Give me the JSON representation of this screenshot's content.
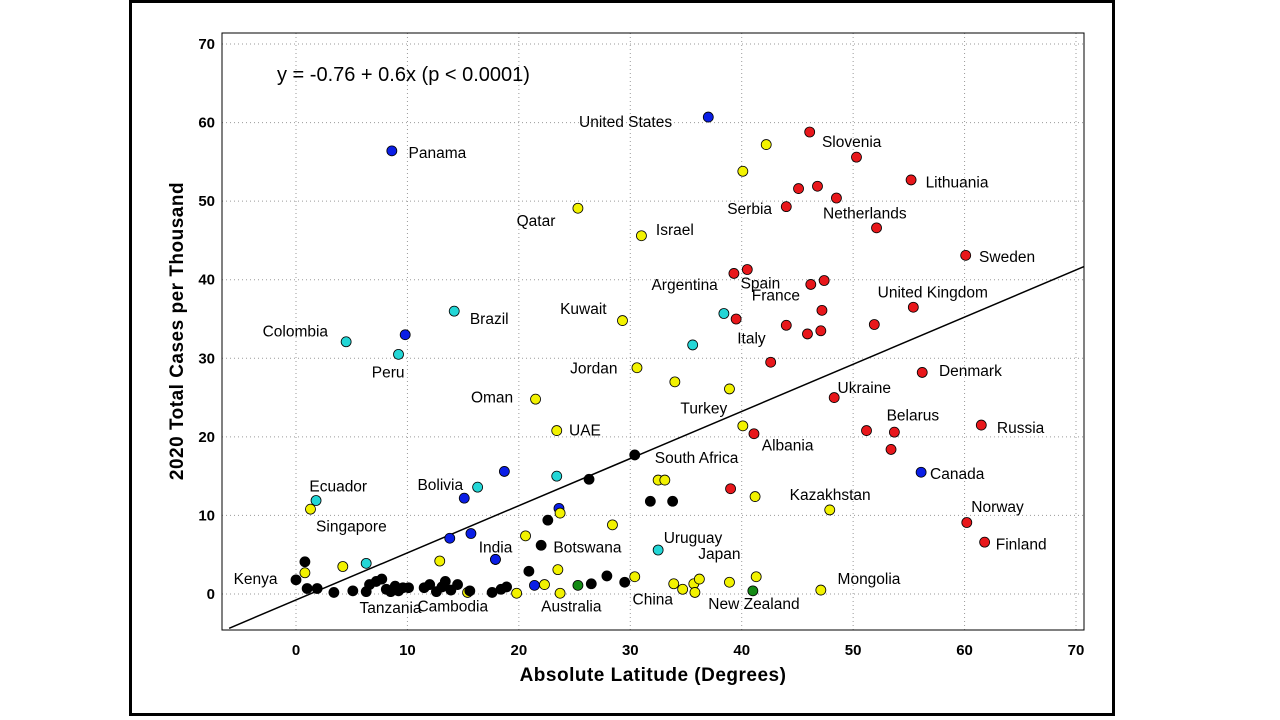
{
  "chart_data": {
    "type": "scatter",
    "title": "",
    "equation": "y = -0.76 + 0.6x (p < 0.0001)",
    "xlabel": "Absolute Latitude (Degrees)",
    "ylabel": "2020 Total Cases per Thousand",
    "xlim": [
      -6,
      71
    ],
    "ylim": [
      -5,
      71
    ],
    "xticks": [
      0,
      10,
      20,
      30,
      40,
      50,
      60,
      70
    ],
    "yticks": [
      0,
      10,
      20,
      30,
      40,
      50,
      60,
      70
    ],
    "grid": "dotted",
    "colors": {
      "red": "#e8171b",
      "blue": "#0a1ee6",
      "cyan": "#23d6d6",
      "yellow": "#f2f200",
      "black": "#000000",
      "green": "#148a14"
    },
    "regression": {
      "intercept": -0.76,
      "slope": 0.6,
      "x_range": [
        -6,
        71
      ]
    },
    "points": [
      {
        "x": 37.0,
        "y": 60.7,
        "c": "blue",
        "label": "United States",
        "ldx": -11.6,
        "ldy": -0.6
      },
      {
        "x": 8.6,
        "y": 56.4,
        "c": "blue",
        "label": "Panama",
        "ldx": 1.5,
        "ldy": -0.3
      },
      {
        "x": 9.8,
        "y": 33.0,
        "c": "blue",
        "label": "",
        "ldx": 0,
        "ldy": 0
      },
      {
        "x": 18.7,
        "y": 15.6,
        "c": "blue",
        "label": "",
        "ldx": 0,
        "ldy": 0
      },
      {
        "x": 15.1,
        "y": 12.2,
        "c": "blue",
        "label": "",
        "ldx": 0,
        "ldy": 0
      },
      {
        "x": 23.6,
        "y": 10.9,
        "c": "blue",
        "label": "",
        "ldx": 0,
        "ldy": 0
      },
      {
        "x": 15.7,
        "y": 7.7,
        "c": "blue",
        "label": "",
        "ldx": 0,
        "ldy": 0
      },
      {
        "x": 13.8,
        "y": 7.1,
        "c": "blue",
        "label": "",
        "ldx": 0,
        "ldy": 0
      },
      {
        "x": 17.9,
        "y": 4.4,
        "c": "blue",
        "label": "",
        "ldx": 0,
        "ldy": 0
      },
      {
        "x": 21.4,
        "y": 1.1,
        "c": "blue",
        "label": "",
        "ldx": 0,
        "ldy": 0
      },
      {
        "x": 56.1,
        "y": 15.5,
        "c": "blue",
        "label": "Canada",
        "ldx": 0.8,
        "ldy": -0.2
      },
      {
        "x": 46.1,
        "y": 58.8,
        "c": "red",
        "label": "Slovenia",
        "ldx": 1.1,
        "ldy": -1.3
      },
      {
        "x": 50.3,
        "y": 55.6,
        "c": "red",
        "label": "",
        "ldx": 0,
        "ldy": 0
      },
      {
        "x": 55.2,
        "y": 52.7,
        "c": "red",
        "label": "Lithuania",
        "ldx": 1.3,
        "ldy": -0.3
      },
      {
        "x": 46.8,
        "y": 51.9,
        "c": "red",
        "label": "",
        "ldx": 0,
        "ldy": 0
      },
      {
        "x": 45.1,
        "y": 51.6,
        "c": "red",
        "label": "",
        "ldx": 0,
        "ldy": 0
      },
      {
        "x": 48.5,
        "y": 50.4,
        "c": "red",
        "label": "",
        "ldx": 0,
        "ldy": 0
      },
      {
        "x": 44.0,
        "y": 49.3,
        "c": "red",
        "label": "Serbia",
        "ldx": -5.3,
        "ldy": -0.3
      },
      {
        "x": 52.1,
        "y": 46.6,
        "c": "red",
        "label": "Netherlands",
        "ldx": -4.8,
        "ldy": 1.8
      },
      {
        "x": 60.1,
        "y": 43.1,
        "c": "red",
        "label": "Sweden",
        "ldx": 1.2,
        "ldy": -0.2
      },
      {
        "x": 40.5,
        "y": 41.3,
        "c": "red",
        "label": "Spain",
        "ldx": -0.6,
        "ldy": -1.8
      },
      {
        "x": 39.3,
        "y": 40.8,
        "c": "red",
        "label": "",
        "ldx": 0,
        "ldy": 0
      },
      {
        "x": 47.4,
        "y": 39.9,
        "c": "red",
        "label": "",
        "ldx": 0,
        "ldy": 0
      },
      {
        "x": 46.2,
        "y": 39.4,
        "c": "red",
        "label": "",
        "ldx": 0,
        "ldy": 0
      },
      {
        "x": 47.2,
        "y": 36.1,
        "c": "red",
        "label": "France",
        "ldx": -6.3,
        "ldy": 1.9
      },
      {
        "x": 55.4,
        "y": 36.5,
        "c": "red",
        "label": "United Kingdom",
        "ldx": -3.2,
        "ldy": 1.9
      },
      {
        "x": 39.5,
        "y": 35.0,
        "c": "red",
        "label": "",
        "ldx": 0,
        "ldy": 0
      },
      {
        "x": 44.0,
        "y": 34.2,
        "c": "red",
        "label": "",
        "ldx": 0,
        "ldy": 0
      },
      {
        "x": 51.9,
        "y": 34.3,
        "c": "red",
        "label": "",
        "ldx": 0,
        "ldy": 0
      },
      {
        "x": 47.1,
        "y": 33.5,
        "c": "red",
        "label": "",
        "ldx": 0,
        "ldy": 0
      },
      {
        "x": 45.9,
        "y": 33.1,
        "c": "red",
        "label": "",
        "ldx": 0,
        "ldy": 0
      },
      {
        "x": 42.6,
        "y": 29.5,
        "c": "red",
        "label": "Italy",
        "ldx": -3.0,
        "ldy": 3.0
      },
      {
        "x": 56.2,
        "y": 28.2,
        "c": "red",
        "label": "Denmark",
        "ldx": 1.5,
        "ldy": 0.2
      },
      {
        "x": 48.3,
        "y": 25.0,
        "c": "red",
        "label": "Ukraine",
        "ldx": 0.3,
        "ldy": 1.2
      },
      {
        "x": 53.7,
        "y": 20.6,
        "c": "red",
        "label": "Belarus",
        "ldx": -0.7,
        "ldy": 2.1
      },
      {
        "x": 51.2,
        "y": 20.8,
        "c": "red",
        "label": "",
        "ldx": 0,
        "ldy": 0
      },
      {
        "x": 61.5,
        "y": 21.5,
        "c": "red",
        "label": "Russia",
        "ldx": 1.4,
        "ldy": -0.4
      },
      {
        "x": 41.1,
        "y": 20.4,
        "c": "red",
        "label": "Albania",
        "ldx": 0.7,
        "ldy": -1.5
      },
      {
        "x": 53.4,
        "y": 18.4,
        "c": "red",
        "label": "",
        "ldx": 0,
        "ldy": 0
      },
      {
        "x": 39.0,
        "y": 13.4,
        "c": "red",
        "label": "",
        "ldx": 0,
        "ldy": 0
      },
      {
        "x": 60.2,
        "y": 9.1,
        "c": "red",
        "label": "Norway",
        "ldx": 0.4,
        "ldy": 2.0
      },
      {
        "x": 61.8,
        "y": 6.6,
        "c": "red",
        "label": "Finland",
        "ldx": 1.0,
        "ldy": -0.3
      },
      {
        "x": 42.2,
        "y": 57.2,
        "c": "yellow",
        "label": "",
        "ldx": 0,
        "ldy": 0
      },
      {
        "x": 40.1,
        "y": 53.8,
        "c": "yellow",
        "label": "",
        "ldx": 0,
        "ldy": 0
      },
      {
        "x": 25.3,
        "y": 49.1,
        "c": "yellow",
        "label": "Qatar",
        "ldx": -5.5,
        "ldy": -1.6
      },
      {
        "x": 31.0,
        "y": 45.6,
        "c": "yellow",
        "label": "Israel",
        "ldx": 1.3,
        "ldy": 0.7
      },
      {
        "x": 29.3,
        "y": 34.8,
        "c": "yellow",
        "label": "Kuwait",
        "ldx": -5.6,
        "ldy": 1.5
      },
      {
        "x": 30.6,
        "y": 28.8,
        "c": "yellow",
        "label": "Jordan",
        "ldx": -6.0,
        "ldy": -0.1
      },
      {
        "x": 34.0,
        "y": 27.0,
        "c": "yellow",
        "label": "",
        "ldx": 0,
        "ldy": 0
      },
      {
        "x": 38.9,
        "y": 26.1,
        "c": "yellow",
        "label": "Turkey",
        "ldx": -4.4,
        "ldy": -2.5
      },
      {
        "x": 21.5,
        "y": 24.8,
        "c": "yellow",
        "label": "Oman",
        "ldx": -5.8,
        "ldy": 0.2
      },
      {
        "x": 23.4,
        "y": 20.8,
        "c": "yellow",
        "label": "UAE",
        "ldx": 1.1,
        "ldy": 0.0
      },
      {
        "x": 40.1,
        "y": 21.4,
        "c": "yellow",
        "label": "",
        "ldx": 0,
        "ldy": 0
      },
      {
        "x": 32.5,
        "y": 14.5,
        "c": "yellow",
        "label": "South Africa",
        "ldx": -0.3,
        "ldy": 2.8
      },
      {
        "x": 33.1,
        "y": 14.5,
        "c": "yellow",
        "label": "",
        "ldx": 0,
        "ldy": 0
      },
      {
        "x": 41.2,
        "y": 12.4,
        "c": "yellow",
        "label": "",
        "ldx": 0,
        "ldy": 0
      },
      {
        "x": 47.9,
        "y": 10.7,
        "c": "yellow",
        "label": "Kazakhstan",
        "ldx": -3.6,
        "ldy": 1.9
      },
      {
        "x": 1.3,
        "y": 10.8,
        "c": "yellow",
        "label": "Singapore",
        "ldx": 0.5,
        "ldy": -2.2
      },
      {
        "x": 23.7,
        "y": 10.3,
        "c": "yellow",
        "label": "",
        "ldx": 0,
        "ldy": 0
      },
      {
        "x": 28.4,
        "y": 8.8,
        "c": "yellow",
        "label": "",
        "ldx": 0,
        "ldy": 0
      },
      {
        "x": 20.6,
        "y": 7.4,
        "c": "yellow",
        "label": "",
        "ldx": 0,
        "ldy": 0
      },
      {
        "x": 12.9,
        "y": 4.2,
        "c": "yellow",
        "label": "",
        "ldx": 0,
        "ldy": 0
      },
      {
        "x": 4.2,
        "y": 3.5,
        "c": "yellow",
        "label": "",
        "ldx": 0,
        "ldy": 0
      },
      {
        "x": 0.8,
        "y": 2.7,
        "c": "yellow",
        "label": "",
        "ldx": 0,
        "ldy": 0
      },
      {
        "x": 23.5,
        "y": 3.1,
        "c": "yellow",
        "label": "",
        "ldx": 0,
        "ldy": 0
      },
      {
        "x": 30.4,
        "y": 2.2,
        "c": "yellow",
        "label": "",
        "ldx": 0,
        "ldy": 0
      },
      {
        "x": 22.3,
        "y": 1.2,
        "c": "yellow",
        "label": "",
        "ldx": 0,
        "ldy": 0
      },
      {
        "x": 33.9,
        "y": 1.3,
        "c": "yellow",
        "label": "",
        "ldx": 0,
        "ldy": 0
      },
      {
        "x": 35.7,
        "y": 1.3,
        "c": "yellow",
        "label": "",
        "ldx": 0,
        "ldy": 0
      },
      {
        "x": 36.2,
        "y": 1.9,
        "c": "yellow",
        "label": "Japan",
        "ldx": -0.1,
        "ldy": 3.2
      },
      {
        "x": 38.9,
        "y": 1.5,
        "c": "yellow",
        "label": "",
        "ldx": 0,
        "ldy": 0
      },
      {
        "x": 41.3,
        "y": 2.2,
        "c": "yellow",
        "label": "",
        "ldx": 0,
        "ldy": 0
      },
      {
        "x": 34.7,
        "y": 0.6,
        "c": "yellow",
        "label": "China",
        "ldx": -4.5,
        "ldy": -1.3
      },
      {
        "x": 35.8,
        "y": 0.2,
        "c": "yellow",
        "label": "",
        "ldx": 0,
        "ldy": 0
      },
      {
        "x": 23.7,
        "y": 0.1,
        "c": "yellow",
        "label": "Australia",
        "ldx": -1.7,
        "ldy": -1.7
      },
      {
        "x": 19.8,
        "y": 0.1,
        "c": "yellow",
        "label": "",
        "ldx": 0,
        "ldy": 0
      },
      {
        "x": 15.4,
        "y": 0.2,
        "c": "yellow",
        "label": "",
        "ldx": 0,
        "ldy": 0
      },
      {
        "x": 47.1,
        "y": 0.5,
        "c": "yellow",
        "label": "Mongolia",
        "ldx": 1.5,
        "ldy": 1.4
      },
      {
        "x": 38.4,
        "y": 35.7,
        "c": "cyan",
        "label": "Argentina",
        "ldx": -6.5,
        "ldy": 3.6
      },
      {
        "x": 35.6,
        "y": 31.7,
        "c": "cyan",
        "label": "",
        "ldx": 0,
        "ldy": 0
      },
      {
        "x": 14.2,
        "y": 36.0,
        "c": "cyan",
        "label": "Brazil",
        "ldx": 1.4,
        "ldy": -1.0
      },
      {
        "x": 4.5,
        "y": 32.1,
        "c": "cyan",
        "label": "Colombia",
        "ldx": -7.5,
        "ldy": 1.3
      },
      {
        "x": 9.2,
        "y": 30.5,
        "c": "cyan",
        "label": "Peru",
        "ldx": -2.4,
        "ldy": -2.3
      },
      {
        "x": 23.4,
        "y": 15.0,
        "c": "cyan",
        "label": "",
        "ldx": 0,
        "ldy": 0
      },
      {
        "x": 16.3,
        "y": 13.6,
        "c": "cyan",
        "label": "Bolivia",
        "ldx": -5.4,
        "ldy": 0.3
      },
      {
        "x": 1.8,
        "y": 11.9,
        "c": "cyan",
        "label": "Ecuador",
        "ldx": -0.6,
        "ldy": 1.8
      },
      {
        "x": 6.3,
        "y": 3.9,
        "c": "cyan",
        "label": "",
        "ldx": 0,
        "ldy": 0
      },
      {
        "x": 32.5,
        "y": 5.6,
        "c": "cyan",
        "label": "Uruguay",
        "ldx": 0.5,
        "ldy": 1.5
      },
      {
        "x": 30.4,
        "y": 17.7,
        "c": "black",
        "label": "",
        "ldx": 0,
        "ldy": 0
      },
      {
        "x": 26.3,
        "y": 14.6,
        "c": "black",
        "label": "",
        "ldx": 0,
        "ldy": 0
      },
      {
        "x": 31.8,
        "y": 11.8,
        "c": "black",
        "label": "",
        "ldx": 0,
        "ldy": 0
      },
      {
        "x": 33.8,
        "y": 11.8,
        "c": "black",
        "label": "",
        "ldx": 0,
        "ldy": 0
      },
      {
        "x": 22.6,
        "y": 9.4,
        "c": "black",
        "label": "",
        "ldx": 0,
        "ldy": 0
      },
      {
        "x": 22.0,
        "y": 6.2,
        "c": "black",
        "label": "Botswana",
        "ldx": 1.1,
        "ldy": -0.3
      },
      {
        "x": 20.9,
        "y": 2.9,
        "c": "black",
        "label": "",
        "ldx": 0,
        "ldy": 0
      },
      {
        "x": 27.9,
        "y": 2.3,
        "c": "black",
        "label": "",
        "ldx": 0,
        "ldy": 0
      },
      {
        "x": 26.5,
        "y": 1.3,
        "c": "black",
        "label": "",
        "ldx": 0,
        "ldy": 0
      },
      {
        "x": 29.5,
        "y": 1.5,
        "c": "black",
        "label": "",
        "ldx": 0,
        "ldy": 0
      },
      {
        "x": 0.8,
        "y": 4.1,
        "c": "black",
        "label": "",
        "ldx": 0,
        "ldy": 0
      },
      {
        "x": 0.0,
        "y": 1.8,
        "c": "black",
        "label": "Kenya",
        "ldx": -5.6,
        "ldy": 0.1
      },
      {
        "x": 1.0,
        "y": 0.7,
        "c": "black",
        "label": "",
        "ldx": 0,
        "ldy": 0
      },
      {
        "x": 1.9,
        "y": 0.7,
        "c": "black",
        "label": "",
        "ldx": 0,
        "ldy": 0
      },
      {
        "x": 3.4,
        "y": 0.2,
        "c": "black",
        "label": "",
        "ldx": 0,
        "ldy": 0
      },
      {
        "x": 5.1,
        "y": 0.4,
        "c": "black",
        "label": "",
        "ldx": 0,
        "ldy": 0
      },
      {
        "x": 6.3,
        "y": 0.3,
        "c": "black",
        "label": "Tanzania",
        "ldx": -0.6,
        "ldy": -2.1
      },
      {
        "x": 6.6,
        "y": 1.2,
        "c": "black",
        "label": "",
        "ldx": 0,
        "ldy": 0
      },
      {
        "x": 7.2,
        "y": 1.6,
        "c": "black",
        "label": "",
        "ldx": 0,
        "ldy": 0
      },
      {
        "x": 7.7,
        "y": 1.9,
        "c": "black",
        "label": "",
        "ldx": 0,
        "ldy": 0
      },
      {
        "x": 8.1,
        "y": 0.6,
        "c": "black",
        "label": "",
        "ldx": 0,
        "ldy": 0
      },
      {
        "x": 8.5,
        "y": 0.3,
        "c": "black",
        "label": "",
        "ldx": 0,
        "ldy": 0
      },
      {
        "x": 8.9,
        "y": 1.0,
        "c": "black",
        "label": "",
        "ldx": 0,
        "ldy": 0
      },
      {
        "x": 9.2,
        "y": 0.4,
        "c": "black",
        "label": "",
        "ldx": 0,
        "ldy": 0
      },
      {
        "x": 9.6,
        "y": 0.8,
        "c": "black",
        "label": "",
        "ldx": 0,
        "ldy": 0
      },
      {
        "x": 10.1,
        "y": 0.8,
        "c": "black",
        "label": "",
        "ldx": 0,
        "ldy": 0
      },
      {
        "x": 11.5,
        "y": 0.8,
        "c": "black",
        "label": "",
        "ldx": 0,
        "ldy": 0
      },
      {
        "x": 12.0,
        "y": 1.2,
        "c": "black",
        "label": "",
        "ldx": 0,
        "ldy": 0
      },
      {
        "x": 12.6,
        "y": 0.3,
        "c": "black",
        "label": "Cambodia",
        "ldx": -1.7,
        "ldy": -1.9
      },
      {
        "x": 13.1,
        "y": 0.9,
        "c": "black",
        "label": "",
        "ldx": 0,
        "ldy": 0
      },
      {
        "x": 13.4,
        "y": 1.6,
        "c": "black",
        "label": "",
        "ldx": 0,
        "ldy": 0
      },
      {
        "x": 13.9,
        "y": 0.5,
        "c": "black",
        "label": "",
        "ldx": 0,
        "ldy": 0
      },
      {
        "x": 14.5,
        "y": 1.2,
        "c": "black",
        "label": "",
        "ldx": 0,
        "ldy": 0
      },
      {
        "x": 15.6,
        "y": 0.4,
        "c": "black",
        "label": "",
        "ldx": 0,
        "ldy": 0
      },
      {
        "x": 17.6,
        "y": 0.2,
        "c": "black",
        "label": "",
        "ldx": 0,
        "ldy": 0
      },
      {
        "x": 18.4,
        "y": 0.6,
        "c": "black",
        "label": "",
        "ldx": 0,
        "ldy": 0
      },
      {
        "x": 18.9,
        "y": 0.9,
        "c": "black",
        "label": "",
        "ldx": 0,
        "ldy": 0
      },
      {
        "x": 25.3,
        "y": 1.1,
        "c": "green",
        "label": "",
        "ldx": 0,
        "ldy": 0
      },
      {
        "x": 41.0,
        "y": 0.4,
        "c": "green",
        "label": "New Zealand",
        "ldx": -4.0,
        "ldy": -1.7
      },
      {
        "x": 17.9,
        "y": 4.4,
        "c": "blue",
        "label": "India",
        "ldx": -1.5,
        "ldy": 1.5
      }
    ]
  }
}
